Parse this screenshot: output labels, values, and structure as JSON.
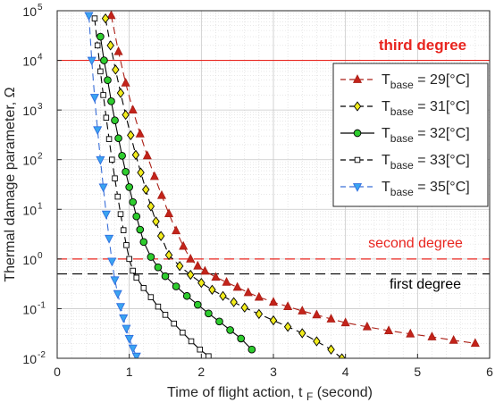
{
  "chart_data": {
    "type": "line",
    "xlabel": "Time of flight action, t",
    "xlabel_sub": "F",
    "xlabel_unit": "(second)",
    "ylabel": "Thermal damage parameter, Ω",
    "xlim": [
      0,
      6
    ],
    "ylim": [
      0.01,
      100000
    ],
    "yscale": "log",
    "x_ticks": [
      0,
      1,
      2,
      3,
      4,
      5,
      6
    ],
    "x_tick_labels": [
      "0",
      "1",
      "2",
      "3",
      "4",
      "5",
      "6"
    ],
    "y_ticks": [
      0.01,
      0.1,
      1,
      10,
      100,
      1000,
      10000,
      100000
    ],
    "y_tick_labels": [
      {
        "base": "10",
        "exp": "-2"
      },
      {
        "base": "10",
        "exp": "-1"
      },
      {
        "base": "10",
        "exp": "0"
      },
      {
        "base": "10",
        "exp": "1"
      },
      {
        "base": "10",
        "exp": "2"
      },
      {
        "base": "10",
        "exp": "3"
      },
      {
        "base": "10",
        "exp": "4"
      },
      {
        "base": "10",
        "exp": "5"
      }
    ],
    "grid": true,
    "minor_grid": true,
    "legend_position": "top-right",
    "thresholds": [
      {
        "label": "third degree",
        "value": 10000,
        "color": "#e8251f",
        "style": "solid"
      },
      {
        "label": "second degree",
        "value": 1,
        "color": "#e8251f",
        "style": "dashed"
      },
      {
        "label": "first degree",
        "value": 0.5,
        "color": "#000000",
        "style": "dashed"
      }
    ],
    "series": [
      {
        "name_main": "T",
        "name_sub": "base",
        "name_value": "= 29[°C]",
        "color": "#ab1f16",
        "line_color": "#ab1f16",
        "marker": "triangle-up",
        "marker_fill": "#c4231a",
        "dash": "8,5",
        "x": [
          0.75,
          0.85,
          0.95,
          1.05,
          1.15,
          1.25,
          1.35,
          1.45,
          1.55,
          1.65,
          1.75,
          1.85,
          1.95,
          2.05,
          2.2,
          2.35,
          2.5,
          2.65,
          2.8,
          3.0,
          3.2,
          3.4,
          3.6,
          3.8,
          4.0,
          4.3,
          4.6,
          4.9,
          5.2,
          5.5,
          5.8
        ],
        "y": [
          80000,
          15000,
          3500,
          1000,
          330,
          120,
          46,
          19,
          8.2,
          3.7,
          1.8,
          1.0,
          0.72,
          0.57,
          0.43,
          0.34,
          0.27,
          0.21,
          0.17,
          0.135,
          0.11,
          0.09,
          0.075,
          0.062,
          0.052,
          0.043,
          0.036,
          0.031,
          0.027,
          0.023,
          0.02
        ]
      },
      {
        "name_main": "T",
        "name_sub": "base",
        "name_value": "= 31[°C]",
        "color": "#000000",
        "line_color": "#000000",
        "marker": "diamond",
        "marker_fill": "#f2ec1c",
        "dash": "8,5",
        "x": [
          0.67,
          0.74,
          0.81,
          0.88,
          0.95,
          1.02,
          1.09,
          1.16,
          1.23,
          1.3,
          1.37,
          1.44,
          1.55,
          1.7,
          1.85,
          2.0,
          2.15,
          2.3,
          2.45,
          2.6,
          2.8,
          3.0,
          3.2,
          3.4,
          3.6,
          3.8,
          3.95
        ],
        "y": [
          70000,
          20000,
          6500,
          2200,
          800,
          310,
          125,
          55,
          25,
          11.5,
          5.7,
          2.9,
          1.2,
          0.72,
          0.48,
          0.33,
          0.24,
          0.18,
          0.135,
          0.105,
          0.078,
          0.058,
          0.043,
          0.032,
          0.022,
          0.015,
          0.01
        ]
      },
      {
        "name_main": "T",
        "name_sub": "base",
        "name_value": "= 32[°C]",
        "color": "#000000",
        "line_color": "#000000",
        "marker": "circle",
        "marker_fill": "#2ecc2e",
        "dash": "",
        "x": [
          0.6,
          0.65,
          0.7,
          0.75,
          0.8,
          0.85,
          0.9,
          0.95,
          1.0,
          1.05,
          1.1,
          1.15,
          1.2,
          1.3,
          1.4,
          1.5,
          1.65,
          1.8,
          1.95,
          2.1,
          2.25,
          2.4,
          2.55,
          2.7
        ],
        "y": [
          30000,
          10000,
          4000,
          1500,
          620,
          270,
          120,
          57,
          28,
          14,
          7.2,
          3.9,
          2.2,
          1.1,
          0.68,
          0.45,
          0.28,
          0.18,
          0.12,
          0.08,
          0.055,
          0.037,
          0.025,
          0.015
        ]
      },
      {
        "name_main": "T",
        "name_sub": "base",
        "name_value": "= 33[°C]",
        "color": "#000000",
        "line_color": "#000000",
        "marker": "square",
        "marker_fill": "#ffffff",
        "dash": "8,5",
        "x": [
          0.52,
          0.56,
          0.6,
          0.64,
          0.68,
          0.72,
          0.76,
          0.8,
          0.84,
          0.88,
          0.92,
          0.96,
          1.0,
          1.05,
          1.1,
          1.2,
          1.3,
          1.4,
          1.5,
          1.62,
          1.74,
          1.86,
          1.98,
          2.1
        ],
        "y": [
          70000,
          20000,
          6000,
          2000,
          700,
          260,
          100,
          42,
          18,
          8,
          3.8,
          1.9,
          1.0,
          0.58,
          0.42,
          0.26,
          0.17,
          0.11,
          0.075,
          0.05,
          0.033,
          0.022,
          0.015,
          0.011
        ]
      },
      {
        "name_main": "T",
        "name_sub": "base",
        "name_value": "= 35[°C]",
        "color": "#2f6ee0",
        "line_color": "#3a6fd8",
        "marker": "triangle-down",
        "marker_fill": "#3aa4f0",
        "dash": "8,5",
        "x": [
          0.44,
          0.48,
          0.52,
          0.56,
          0.6,
          0.64,
          0.68,
          0.72,
          0.76,
          0.8,
          0.84,
          0.88,
          0.92,
          0.96,
          1.0,
          1.05,
          1.1
        ],
        "y": [
          80000,
          10000,
          1800,
          400,
          100,
          28,
          8,
          2.6,
          0.9,
          0.38,
          0.2,
          0.11,
          0.065,
          0.04,
          0.025,
          0.016,
          0.011
        ]
      }
    ]
  }
}
